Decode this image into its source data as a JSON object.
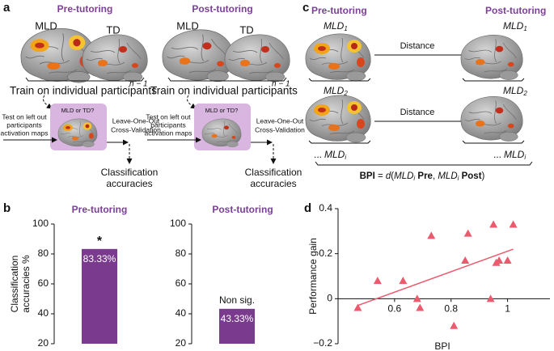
{
  "panel_a": {
    "label": "a",
    "titles": [
      "Pre-tutoring",
      "Post-tutoring"
    ],
    "groups": [
      "MLD",
      "TD"
    ],
    "train": "Train on individual participants",
    "n": "n − 1",
    "test": [
      "Test on left out",
      "participants",
      "activation maps"
    ],
    "box": "MLD or TD?",
    "cv": [
      "Leave-One-Out",
      "Cross-Validation"
    ],
    "result": [
      "Classification",
      "accuracies"
    ]
  },
  "panel_c": {
    "label": "c",
    "titles": [
      "Pre-tutoring",
      "Post-tutoring"
    ],
    "rows": [
      {
        "base": "MLD",
        "sub": "1"
      },
      {
        "base": "MLD",
        "sub": "2"
      }
    ],
    "last": {
      "dots": "...",
      "base": "MLD",
      "sub": "i"
    },
    "distance": "Distance",
    "formula": [
      "BPI",
      " = ",
      "d",
      "(",
      "MLD",
      "i",
      " Pre",
      ", ",
      "MLD",
      "i",
      " Post",
      ")"
    ]
  },
  "chart_data": [
    {
      "type": "bar",
      "label": "b",
      "title": "Pre-tutoring",
      "ylabel": [
        "Classification",
        "accuracies %"
      ],
      "categories": [
        null
      ],
      "values": [
        83.33
      ],
      "value_labels": [
        "83.33%"
      ],
      "annotations": [
        "*"
      ],
      "color": "#7a3b8f",
      "ylim": [
        20,
        100
      ],
      "yticks": [
        20,
        40,
        60,
        80,
        100
      ]
    },
    {
      "type": "bar",
      "title": "Post-tutoring",
      "categories": [
        null
      ],
      "values": [
        43.33
      ],
      "value_labels": [
        "43.33%"
      ],
      "annotations": [
        "Non sig."
      ],
      "color": "#7a3b8f",
      "ylim": [
        20,
        100
      ],
      "yticks": [
        20,
        40,
        60,
        80,
        100
      ]
    },
    {
      "type": "scatter",
      "label": "d",
      "xlabel": "BPI",
      "ylabel": "Performance gain",
      "color": "#ec5a6e",
      "x": [
        0.47,
        0.54,
        0.63,
        0.68,
        0.69,
        0.73,
        0.81,
        0.86,
        0.85,
        0.94,
        0.95,
        0.96,
        0.97,
        1.0,
        1.02
      ],
      "y": [
        -0.04,
        0.08,
        0.08,
        0.0,
        -0.04,
        0.28,
        -0.12,
        0.29,
        0.17,
        0.0,
        0.33,
        0.16,
        0.17,
        0.17,
        0.33
      ],
      "fit": {
        "x": [
          0.47,
          1.02
        ],
        "y": [
          -0.03,
          0.22
        ]
      },
      "xlim": [
        0.4,
        1.15
      ],
      "ylim": [
        -0.2,
        0.4
      ],
      "xticks": [
        0.6,
        0.8,
        1
      ],
      "yticks": [
        {
          "value": -0.2,
          "label": "−0.2"
        },
        0,
        0.2,
        0.4
      ]
    }
  ]
}
